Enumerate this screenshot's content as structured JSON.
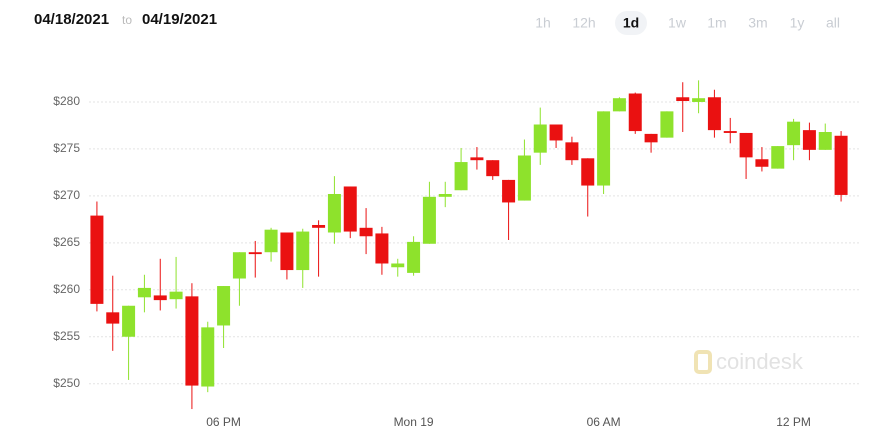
{
  "header": {
    "from": "04/18/2021",
    "sep": "to",
    "to": "04/19/2021",
    "ranges": [
      "1h",
      "12h",
      "1d",
      "1w",
      "1m",
      "3m",
      "1y",
      "all"
    ],
    "selected": 2
  },
  "watermark": "coindesk",
  "chart_data": {
    "type": "candlestick",
    "categories": [
      null,
      null,
      null,
      null,
      null,
      null,
      null,
      null,
      "06 PM",
      null,
      null,
      null,
      null,
      null,
      null,
      null,
      null,
      null,
      null,
      null,
      "Mon 19",
      null,
      null,
      null,
      null,
      null,
      null,
      null,
      null,
      null,
      null,
      null,
      "06 AM",
      null,
      null,
      null,
      null,
      null,
      null,
      null,
      null,
      null,
      null,
      null,
      "12 PM",
      null,
      null,
      null
    ],
    "open": [
      267.9,
      257.6,
      255.0,
      259.2,
      259.4,
      259.0,
      259.3,
      249.7,
      256.2,
      261.2,
      264.0,
      264.0,
      266.1,
      262.1,
      266.9,
      266.1,
      271.0,
      266.6,
      266.0,
      262.4,
      261.8,
      264.9,
      269.9,
      270.6,
      274.1,
      273.8,
      271.7,
      269.5,
      274.6,
      277.6,
      275.7,
      274.0,
      271.1,
      279.0,
      280.9,
      276.6,
      276.2,
      280.5,
      280.0,
      280.5,
      276.9,
      276.7,
      273.9,
      272.9,
      275.4,
      277.0,
      274.9,
      276.4
    ],
    "high": [
      269.4,
      261.5,
      258.3,
      261.6,
      263.3,
      263.5,
      260.7,
      256.6,
      260.4,
      264.0,
      265.2,
      266.6,
      266.1,
      266.5,
      267.4,
      272.1,
      271.0,
      268.7,
      266.7,
      263.3,
      265.7,
      271.5,
      271.5,
      275.1,
      275.2,
      273.8,
      271.7,
      276.0,
      279.4,
      277.6,
      276.3,
      274.0,
      279.0,
      280.5,
      281.0,
      276.6,
      279.0,
      282.1,
      282.3,
      281.3,
      278.3,
      276.7,
      275.2,
      275.3,
      278.2,
      277.8,
      277.7,
      276.9
    ],
    "low": [
      257.7,
      253.5,
      250.4,
      257.6,
      257.8,
      258.0,
      247.3,
      249.1,
      253.8,
      258.3,
      261.3,
      263.0,
      261.1,
      260.2,
      261.4,
      264.9,
      265.5,
      263.8,
      261.6,
      261.4,
      261.5,
      264.9,
      268.8,
      270.6,
      272.8,
      271.7,
      265.3,
      269.5,
      273.3,
      275.1,
      273.3,
      267.8,
      270.2,
      279.0,
      276.6,
      274.6,
      276.2,
      276.8,
      278.8,
      276.2,
      275.6,
      271.8,
      272.6,
      272.9,
      273.8,
      273.8,
      274.9,
      269.4
    ],
    "close": [
      258.5,
      256.4,
      258.3,
      260.2,
      258.9,
      259.8,
      249.8,
      256.0,
      260.4,
      264.0,
      263.8,
      266.4,
      262.1,
      266.2,
      266.6,
      270.2,
      266.2,
      265.7,
      262.8,
      262.8,
      265.1,
      269.9,
      270.2,
      273.6,
      273.8,
      272.1,
      269.3,
      274.3,
      277.6,
      275.9,
      273.8,
      271.1,
      279.0,
      280.4,
      276.9,
      275.7,
      279.0,
      280.1,
      280.4,
      277.0,
      276.7,
      274.1,
      273.1,
      275.3,
      277.9,
      274.9,
      276.8,
      270.1
    ],
    "up_color": "#8ee22c",
    "down_color": "#ea1111",
    "ylim": [
      247.2,
      285
    ],
    "yticks": [
      {
        "value": 250,
        "label": "$250"
      },
      {
        "value": 255,
        "label": "$255"
      },
      {
        "value": 260,
        "label": "$260"
      },
      {
        "value": 265,
        "label": "$265"
      },
      {
        "value": 270,
        "label": "$270"
      },
      {
        "value": 275,
        "label": "$275"
      },
      {
        "value": 280,
        "label": "$280"
      }
    ],
    "grid": true
  }
}
